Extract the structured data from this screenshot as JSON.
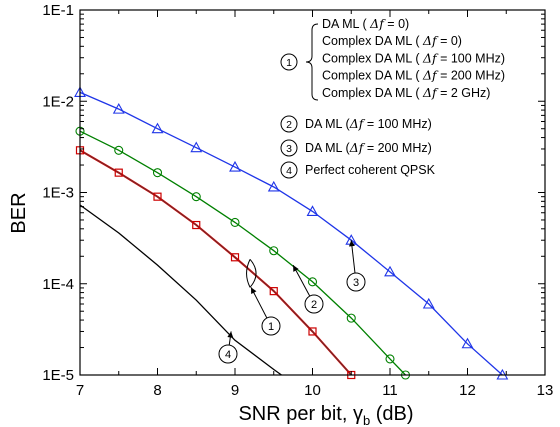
{
  "chart_data": {
    "type": "line",
    "xlabel_main": "SNR per bit, γ",
    "xlabel_sub": "b",
    "xlabel_unit": " (dB)",
    "ylabel": "BER",
    "xlim": [
      7,
      13
    ],
    "ylim": [
      1e-05,
      0.1
    ],
    "yscale": "log",
    "xticks": [
      7,
      8,
      9,
      10,
      11,
      12,
      13
    ],
    "xtick_labels": [
      "7",
      "8",
      "9",
      "10",
      "11",
      "12",
      "13"
    ],
    "yticks": [
      1e-05,
      0.0001,
      0.001,
      0.01,
      0.1
    ],
    "ytick_labels": [
      "1E-5",
      "1E-4",
      "1E-3",
      "1E-2",
      "1E-1"
    ],
    "grid": false,
    "legend_position": "top-right",
    "series": [
      {
        "id": "s1-red",
        "color": "#cc0000",
        "marker": "square",
        "group": "1",
        "x": [
          7,
          7.5,
          8,
          8.5,
          9,
          9.5,
          10,
          10.5
        ],
        "y": [
          0.0029,
          0.00165,
          0.0009,
          0.00044,
          0.000195,
          8.3e-05,
          3e-05,
          1e-05
        ]
      },
      {
        "id": "s2-green",
        "color": "#008000",
        "marker": "circle",
        "group": "2",
        "x": [
          7,
          7.5,
          8,
          8.5,
          9,
          9.5,
          10,
          10.5,
          11,
          11.2
        ],
        "y": [
          0.0047,
          0.0029,
          0.00165,
          0.0009,
          0.00047,
          0.00023,
          0.000105,
          4.2e-05,
          1.5e-05,
          1e-05
        ]
      },
      {
        "id": "s3-blue",
        "color": "#1f35e8",
        "marker": "triangle",
        "group": "3",
        "x": [
          7,
          7.5,
          8,
          8.5,
          9,
          9.5,
          10,
          10.5,
          11,
          11.5,
          12,
          12.45
        ],
        "y": [
          0.0125,
          0.0082,
          0.005,
          0.0031,
          0.0019,
          0.00115,
          0.00062,
          0.0003,
          0.000135,
          6e-05,
          2.2e-05,
          1e-05
        ]
      },
      {
        "id": "s4-black",
        "color": "#000000",
        "marker": "none",
        "group": "4",
        "x": [
          7,
          7.5,
          8,
          8.5,
          9,
          9.5,
          9.6
        ],
        "y": [
          0.00073,
          0.00036,
          0.00016,
          6.6e-05,
          2.4e-05,
          1.15e-05,
          1e-05
        ]
      }
    ],
    "legend": {
      "group1": {
        "number": "1",
        "lines": [
          {
            "pre": "DA ML ( ",
            "sym": "Δf",
            "post": " = 0)"
          },
          {
            "pre": "Complex DA ML ( ",
            "sym": "Δf",
            "post": " = 0)"
          },
          {
            "pre": "Complex DA ML ( ",
            "sym": "Δf",
            "post": " = 100 MHz)"
          },
          {
            "pre": "Complex DA ML ( ",
            "sym": "Δf",
            "post": " = 200 MHz)"
          },
          {
            "pre": "Complex DA ML ( ",
            "sym": "Δf",
            "post": " = 2 GHz)"
          }
        ]
      },
      "group2": {
        "number": "2",
        "pre": "DA ML (",
        "sym": "Δf",
        "post": " = 100 MHz)"
      },
      "group3": {
        "number": "3",
        "pre": "DA ML (",
        "sym": "Δf",
        "post": " = 200 MHz)"
      },
      "group4": {
        "number": "4",
        "text": "Perfect coherent QPSK"
      }
    },
    "callouts": [
      {
        "number": "1",
        "target": {
          "x": 9.22,
          "y": 0.00013
        }
      },
      {
        "number": "2",
        "target": {
          "x": 9.75,
          "y": 0.00016
        }
      },
      {
        "number": "3",
        "target": {
          "x": 10.5,
          "y": 0.0003
        }
      },
      {
        "number": "4",
        "target": {
          "x": 8.95,
          "y": 3e-05
        }
      }
    ]
  }
}
